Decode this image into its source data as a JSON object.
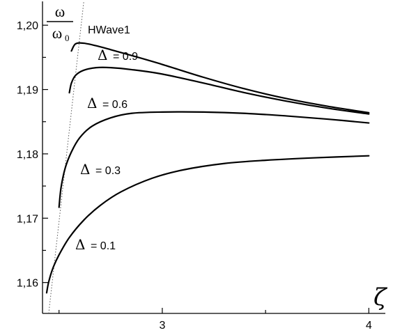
{
  "chart_data": {
    "type": "line",
    "title": "HWave1",
    "xlabel": "ζ",
    "ylabel": {
      "numerator": "ω",
      "denominator": "ω",
      "denominator_subscript": "0"
    },
    "xlim": [
      2.42,
      4.08
    ],
    "ylim": [
      1.1552,
      1.2037
    ],
    "x_ticks": [
      3,
      4
    ],
    "x_tick_labels": [
      "3",
      "4"
    ],
    "x_minor_ticks": [
      2.5,
      3.5
    ],
    "y_ticks": [
      1.16,
      1.17,
      1.18,
      1.19,
      1.2
    ],
    "y_tick_labels": [
      "1,16",
      "1,17",
      "1,18",
      "1,19",
      "1,20"
    ],
    "y_minor_ticks": [
      1.165,
      1.175,
      1.185,
      1.195
    ],
    "grid": false,
    "boundary_line": {
      "style": "dotted",
      "points": [
        [
          2.45,
          1.1552
        ],
        [
          2.62,
          1.2037
        ]
      ]
    },
    "series": [
      {
        "name": "0.9",
        "label_delta": "Δ",
        "label_rest": "= 0.9",
        "x": [
          2.56,
          2.58,
          2.62,
          2.68,
          2.75,
          2.85,
          3.0,
          3.2,
          3.4,
          3.6,
          3.8,
          4.0
        ],
        "y": [
          1.196,
          1.1971,
          1.1972,
          1.1968,
          1.1962,
          1.1953,
          1.1939,
          1.1919,
          1.1901,
          1.1886,
          1.1874,
          1.1864
        ]
      },
      {
        "name": "0.6",
        "label_delta": "Δ",
        "label_rest": "= 0.6",
        "x": [
          2.55,
          2.56,
          2.58,
          2.62,
          2.68,
          2.75,
          2.85,
          3.0,
          3.2,
          3.4,
          3.6,
          3.8,
          4.0
        ],
        "y": [
          1.1895,
          1.191,
          1.1922,
          1.193,
          1.1934,
          1.1934,
          1.1931,
          1.1924,
          1.191,
          1.1895,
          1.1882,
          1.1871,
          1.1862
        ]
      },
      {
        "name": "0.3",
        "label_delta": "Δ",
        "label_rest": "= 0.3",
        "x": [
          2.5,
          2.51,
          2.53,
          2.56,
          2.6,
          2.66,
          2.75,
          2.85,
          3.0,
          3.2,
          3.4,
          3.6,
          3.8,
          4.0
        ],
        "y": [
          1.1717,
          1.1748,
          1.1778,
          1.1803,
          1.1825,
          1.1843,
          1.1856,
          1.1863,
          1.1865,
          1.1865,
          1.1863,
          1.1859,
          1.1854,
          1.1848
        ]
      },
      {
        "name": "0.1",
        "label_delta": "Δ",
        "label_rest": "= 0.1",
        "x": [
          2.44,
          2.45,
          2.47,
          2.5,
          2.55,
          2.62,
          2.7,
          2.8,
          2.95,
          3.1,
          3.3,
          3.5,
          3.75,
          4.0
        ],
        "y": [
          1.1584,
          1.1601,
          1.1622,
          1.1643,
          1.167,
          1.1697,
          1.172,
          1.1741,
          1.1762,
          1.1775,
          1.1785,
          1.179,
          1.1794,
          1.1797
        ]
      }
    ]
  }
}
